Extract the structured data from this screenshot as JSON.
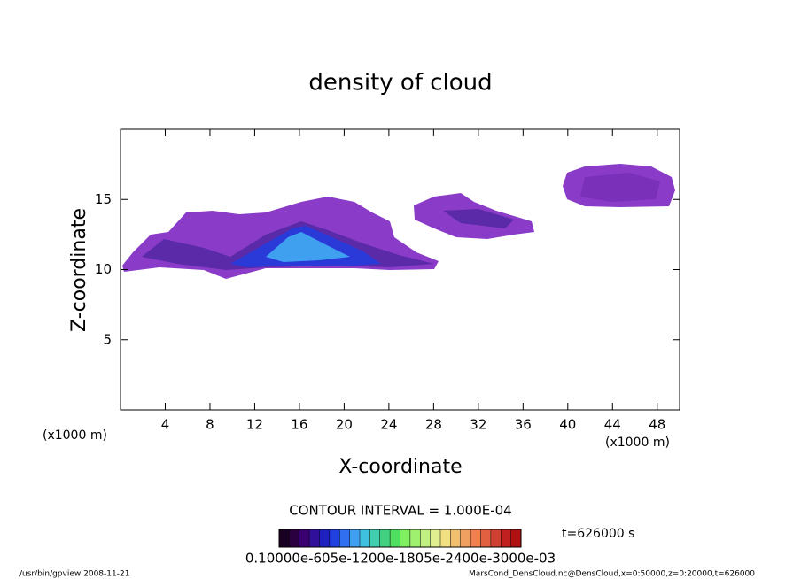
{
  "chart_data": {
    "type": "contour",
    "title": "density of cloud",
    "x_label": "X-coordinate",
    "y_label": "Z-coordinate",
    "x_unit_left": "(x1000 m)",
    "x_unit_right": "(x1000 m)",
    "xlim": [
      0,
      50
    ],
    "xticks": [
      4,
      8,
      12,
      16,
      20,
      24,
      28,
      32,
      36,
      40,
      44,
      48
    ],
    "ylim": [
      0,
      20
    ],
    "yticks": [
      5,
      10,
      15
    ],
    "contour_interval": "CONTOUR INTERVAL = 1.000E-04",
    "time_label": "t=626000 s",
    "colorbar_labels": "0.10000e-605e-1200e-1805e-2400e-3000e-03",
    "colorbar_colors": [
      "#1a0020",
      "#2a0040",
      "#3a0070",
      "#30109a",
      "#2020c0",
      "#2040e0",
      "#3070f0",
      "#40a0f0",
      "#40c0e0",
      "#40d0b0",
      "#40d080",
      "#50e060",
      "#80f060",
      "#a0f070",
      "#c0f080",
      "#e0f090",
      "#f0e080",
      "#f0c070",
      "#f0a060",
      "#f08050",
      "#e06040",
      "#d04030",
      "#c02020",
      "#b01010"
    ],
    "footer_left": "/usr/bin/gpview  2008-11-21",
    "footer_right": "MarsCond_DensCloud.nc@DensCloud,x=0:50000,z=0:20000,t=626000"
  }
}
